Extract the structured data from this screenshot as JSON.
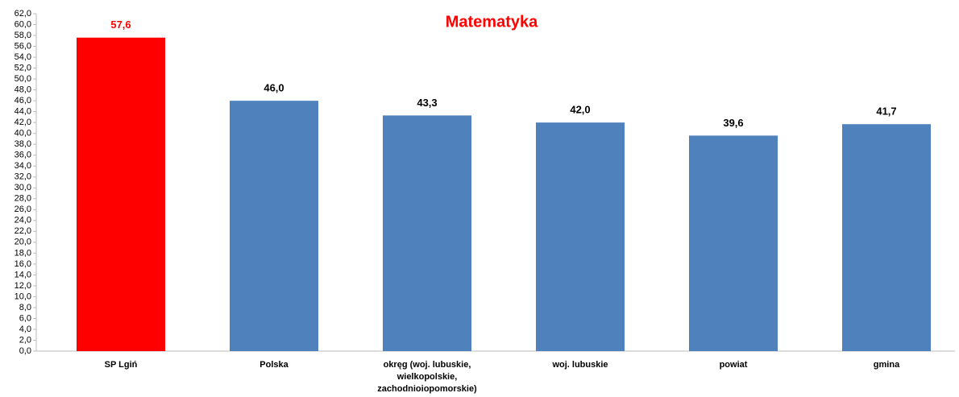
{
  "chart_data": {
    "type": "bar",
    "title": "Matematyka",
    "categories": [
      "SP Lgiń",
      "Polska",
      "okręg (woj. lubuskie, wielkopolskie, zachodnioiopomorskie)",
      "woj. lubuskie",
      "powiat",
      "gmina"
    ],
    "values": [
      57.6,
      46.0,
      43.3,
      42.0,
      39.6,
      41.7
    ],
    "value_labels": [
      "57,6",
      "46,0",
      "43,3",
      "42,0",
      "39,6",
      "41,7"
    ],
    "colors": [
      "#ff0000",
      "#4f81bd",
      "#4f81bd",
      "#4f81bd",
      "#4f81bd",
      "#4f81bd"
    ],
    "label_colors": [
      "#ff0000",
      "#000000",
      "#000000",
      "#000000",
      "#000000",
      "#000000"
    ],
    "title_color": "#ff0000",
    "ylim": [
      0,
      62
    ],
    "yticks": [
      {
        "value": 0,
        "label": "0,0"
      },
      {
        "value": 2,
        "label": "2,0"
      },
      {
        "value": 4,
        "label": "4,0"
      },
      {
        "value": 6,
        "label": "6,0"
      },
      {
        "value": 8,
        "label": "8,0"
      },
      {
        "value": 10,
        "label": "10,0"
      },
      {
        "value": 12,
        "label": "12,0"
      },
      {
        "value": 14,
        "label": "14,0"
      },
      {
        "value": 16,
        "label": "16,0"
      },
      {
        "value": 18,
        "label": "18,0"
      },
      {
        "value": 20,
        "label": "20,0"
      },
      {
        "value": 22,
        "label": "22,0"
      },
      {
        "value": 24,
        "label": "24,0"
      },
      {
        "value": 26,
        "label": "26,0"
      },
      {
        "value": 28,
        "label": "28,0"
      },
      {
        "value": 30,
        "label": "30,0"
      },
      {
        "value": 32,
        "label": "32,0"
      },
      {
        "value": 34,
        "label": "34,0"
      },
      {
        "value": 36,
        "label": "36,0"
      },
      {
        "value": 38,
        "label": "38,0"
      },
      {
        "value": 40,
        "label": "40,0"
      },
      {
        "value": 42,
        "label": "42,0"
      },
      {
        "value": 44,
        "label": "44,0"
      },
      {
        "value": 46,
        "label": "46,0"
      },
      {
        "value": 48,
        "label": "48,0"
      },
      {
        "value": 50,
        "label": "50,0"
      },
      {
        "value": 52,
        "label": "52,0"
      },
      {
        "value": 54,
        "label": "54,0"
      },
      {
        "value": 56,
        "label": "56,0"
      },
      {
        "value": 58,
        "label": "58,0"
      },
      {
        "value": 60,
        "label": "60,0"
      },
      {
        "value": 62,
        "label": "62,0"
      }
    ],
    "grid": false
  }
}
